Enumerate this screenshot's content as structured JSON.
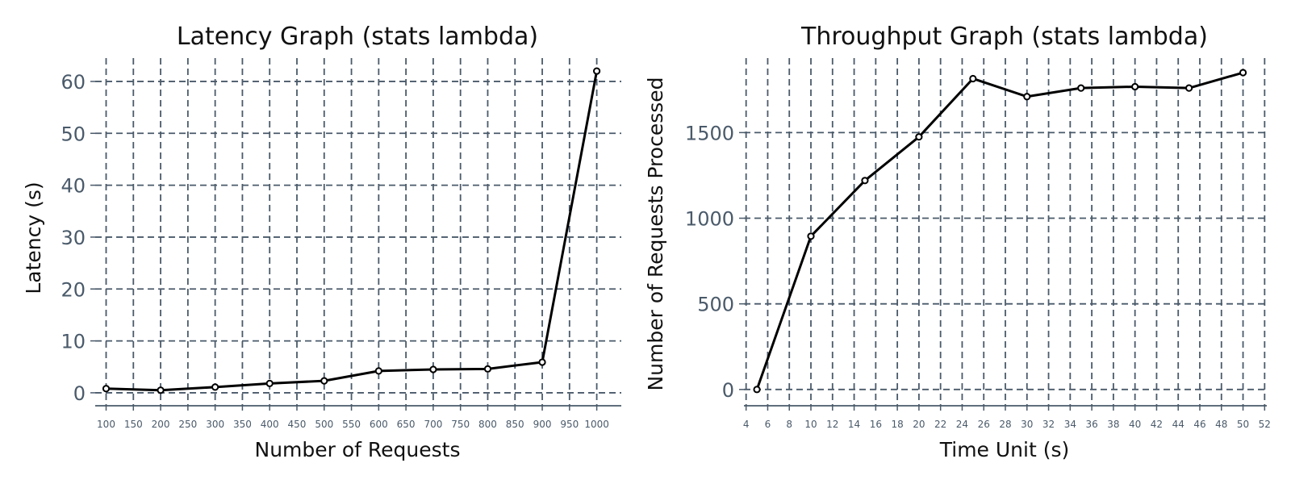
{
  "chart_data": [
    {
      "type": "line",
      "title": "Latency Graph (stats lambda)",
      "xlabel": "Number of Requests",
      "ylabel": "Latency (s)",
      "x": [
        100,
        200,
        300,
        400,
        500,
        600,
        700,
        800,
        900,
        1000
      ],
      "series": [
        {
          "values": [
            0.8,
            0.5,
            1.1,
            1.8,
            2.3,
            4.2,
            4.5,
            4.6,
            5.9,
            62.0
          ]
        }
      ],
      "xticks": [
        100,
        150,
        200,
        250,
        300,
        350,
        400,
        450,
        500,
        550,
        600,
        650,
        700,
        750,
        800,
        850,
        900,
        950,
        1000
      ],
      "yticks": [
        0,
        10,
        20,
        30,
        40,
        50,
        60
      ],
      "xlim": [
        80,
        1045
      ],
      "ylim": [
        -2.5,
        64.5
      ],
      "grid": true,
      "line_color": "#000000"
    },
    {
      "type": "line",
      "title": "Throughput Graph (stats lambda)",
      "xlabel": "Time Unit (s)",
      "ylabel": "Number of Requests Processed",
      "x": [
        5,
        10,
        15,
        20,
        25,
        30,
        35,
        40,
        45,
        50
      ],
      "series": [
        {
          "values": [
            0,
            895,
            1220,
            1475,
            1815,
            1710,
            1760,
            1768,
            1760,
            1850
          ]
        }
      ],
      "xticks": [
        4,
        6,
        8,
        10,
        12,
        14,
        16,
        18,
        20,
        22,
        24,
        26,
        28,
        30,
        32,
        34,
        36,
        38,
        40,
        42,
        44,
        46,
        48,
        50,
        52
      ],
      "yticks": [
        0,
        500,
        1000,
        1500
      ],
      "xlim": [
        3.8,
        52.2
      ],
      "ylim": [
        -95,
        1935
      ],
      "grid": true,
      "line_color": "#000000"
    }
  ]
}
